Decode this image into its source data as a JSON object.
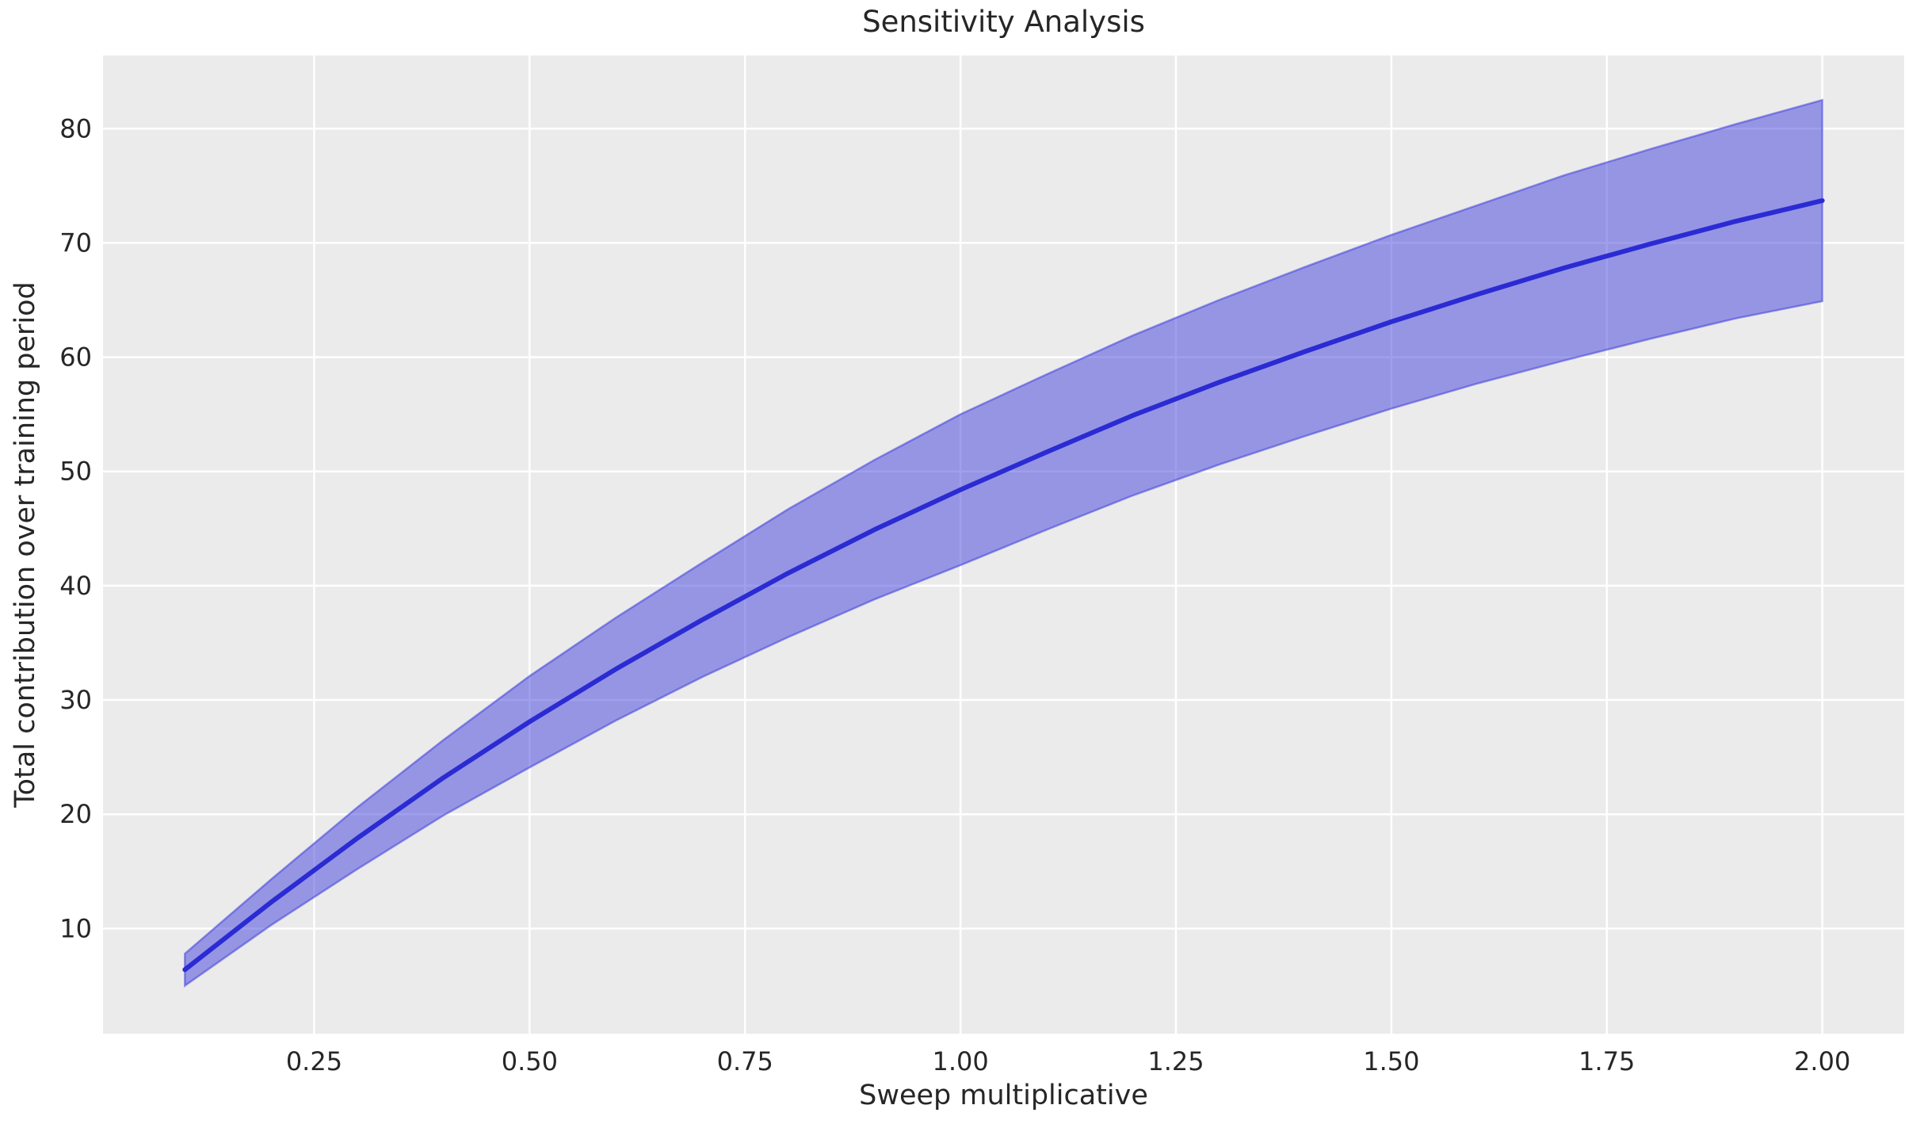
{
  "chart_data": {
    "type": "line",
    "title": "Sensitivity Analysis",
    "xlabel": "Sweep multiplicative",
    "ylabel": "Total contribution over training period",
    "x": [
      0.1,
      0.2,
      0.3,
      0.4,
      0.5,
      0.6,
      0.7,
      0.8,
      0.9,
      1.0,
      1.1,
      1.2,
      1.3,
      1.4,
      1.5,
      1.6,
      1.7,
      1.8,
      1.9,
      2.0
    ],
    "series": [
      {
        "name": "mean",
        "values": [
          6.4,
          12.3,
          17.9,
          23.2,
          28.1,
          32.7,
          37.0,
          41.1,
          44.9,
          48.4,
          51.7,
          54.9,
          57.8,
          60.5,
          63.1,
          65.5,
          67.8,
          69.9,
          71.9,
          73.7
        ]
      },
      {
        "name": "band_lower",
        "values": [
          5.0,
          10.3,
          15.2,
          19.9,
          24.1,
          28.2,
          32.0,
          35.5,
          38.8,
          41.8,
          44.9,
          47.9,
          50.6,
          53.1,
          55.5,
          57.7,
          59.7,
          61.6,
          63.4,
          64.9
        ]
      },
      {
        "name": "band_upper",
        "values": [
          7.8,
          14.3,
          20.6,
          26.5,
          32.1,
          37.2,
          42.0,
          46.7,
          51.0,
          55.0,
          58.5,
          61.9,
          65.0,
          67.9,
          70.7,
          73.3,
          75.9,
          78.2,
          80.4,
          82.5
        ]
      }
    ],
    "xlim": [
      0.005,
      2.095
    ],
    "ylim": [
      0.8,
      86.4
    ],
    "x_ticks": [
      0.25,
      0.5,
      0.75,
      1.0,
      1.25,
      1.5,
      1.75,
      2.0
    ],
    "x_tick_labels": [
      "0.25",
      "0.50",
      "0.75",
      "1.00",
      "1.25",
      "1.50",
      "1.75",
      "2.00"
    ],
    "y_ticks": [
      10,
      20,
      30,
      40,
      50,
      60,
      70,
      80
    ],
    "y_tick_labels": [
      "10",
      "20",
      "30",
      "40",
      "50",
      "60",
      "70",
      "80"
    ],
    "grid": true,
    "legend": false,
    "colors": {
      "line": "#2b2bd3",
      "band_fill": "rgba(64,64,221,0.5)",
      "band_edge": "rgba(64,64,221,0.55)",
      "plot_bg": "#ebebeb",
      "grid": "#ffffff",
      "text": "#262626",
      "figure_bg": "#ffffff"
    }
  }
}
